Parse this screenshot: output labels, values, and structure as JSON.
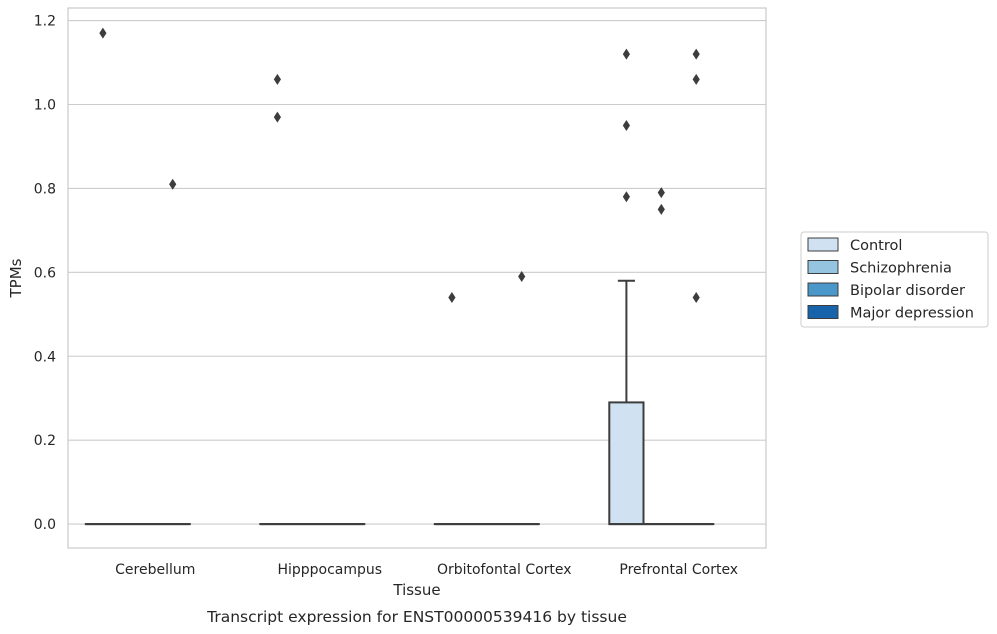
{
  "chart_data": {
    "type": "box",
    "caption": "Transcript expression for ENST00000539416 by tissue",
    "xlabel": "Tissue",
    "ylabel": "TPMs",
    "ylim": [
      -0.057,
      1.23
    ],
    "yticks": [
      0.0,
      0.2,
      0.4,
      0.6,
      0.8,
      1.0,
      1.2
    ],
    "ytick_labels": [
      "0.0",
      "0.2",
      "0.4",
      "0.6",
      "0.8",
      "1.0",
      "1.2"
    ],
    "categories": [
      "Cerebellum",
      "Hipppocampus",
      "Orbitofontal Cortex",
      "Prefrontal Cortex"
    ],
    "grid": "horizontal",
    "legend_position": "right",
    "series": [
      {
        "name": "Control",
        "color": "#d0e1f2",
        "boxes": [
          {
            "category": "Cerebellum",
            "whisker_low": 0.0,
            "q1": 0.0,
            "median": 0.0,
            "q3": 0.0,
            "whisker_high": 0.0,
            "outliers": [
              1.17
            ]
          },
          {
            "category": "Hipppocampus",
            "whisker_low": 0.0,
            "q1": 0.0,
            "median": 0.0,
            "q3": 0.0,
            "whisker_high": 0.0,
            "outliers": [
              1.06,
              0.97
            ]
          },
          {
            "category": "Orbitofontal Cortex",
            "whisker_low": 0.0,
            "q1": 0.0,
            "median": 0.0,
            "q3": 0.0,
            "whisker_high": 0.0,
            "outliers": [
              0.54
            ]
          },
          {
            "category": "Prefrontal Cortex",
            "whisker_low": 0.0,
            "q1": 0.0,
            "median": 0.0,
            "q3": 0.29,
            "whisker_high": 0.58,
            "outliers": [
              1.12,
              0.95,
              0.78
            ]
          }
        ]
      },
      {
        "name": "Schizophrenia",
        "color": "#94c4df",
        "boxes": [
          {
            "category": "Cerebellum",
            "whisker_low": 0.0,
            "q1": 0.0,
            "median": 0.0,
            "q3": 0.0,
            "whisker_high": 0.0,
            "outliers": []
          },
          {
            "category": "Hipppocampus",
            "whisker_low": 0.0,
            "q1": 0.0,
            "median": 0.0,
            "q3": 0.0,
            "whisker_high": 0.0,
            "outliers": []
          },
          {
            "category": "Orbitofontal Cortex",
            "whisker_low": 0.0,
            "q1": 0.0,
            "median": 0.0,
            "q3": 0.0,
            "whisker_high": 0.0,
            "outliers": []
          },
          {
            "category": "Prefrontal Cortex",
            "whisker_low": 0.0,
            "q1": 0.0,
            "median": 0.0,
            "q3": 0.0,
            "whisker_high": 0.0,
            "outliers": [
              0.79,
              0.75
            ]
          }
        ]
      },
      {
        "name": "Bipolar disorder",
        "color": "#4a98c9",
        "boxes": [
          {
            "category": "Cerebellum",
            "whisker_low": 0.0,
            "q1": 0.0,
            "median": 0.0,
            "q3": 0.0,
            "whisker_high": 0.0,
            "outliers": [
              0.81
            ]
          },
          {
            "category": "Hipppocampus",
            "whisker_low": 0.0,
            "q1": 0.0,
            "median": 0.0,
            "q3": 0.0,
            "whisker_high": 0.0,
            "outliers": []
          },
          {
            "category": "Orbitofontal Cortex",
            "whisker_low": 0.0,
            "q1": 0.0,
            "median": 0.0,
            "q3": 0.0,
            "whisker_high": 0.0,
            "outliers": [
              0.59
            ]
          },
          {
            "category": "Prefrontal Cortex",
            "whisker_low": 0.0,
            "q1": 0.0,
            "median": 0.0,
            "q3": 0.0,
            "whisker_high": 0.0,
            "outliers": [
              1.12,
              1.06,
              0.54
            ]
          }
        ]
      },
      {
        "name": "Major depression",
        "color": "#1764ab",
        "boxes": []
      }
    ]
  }
}
